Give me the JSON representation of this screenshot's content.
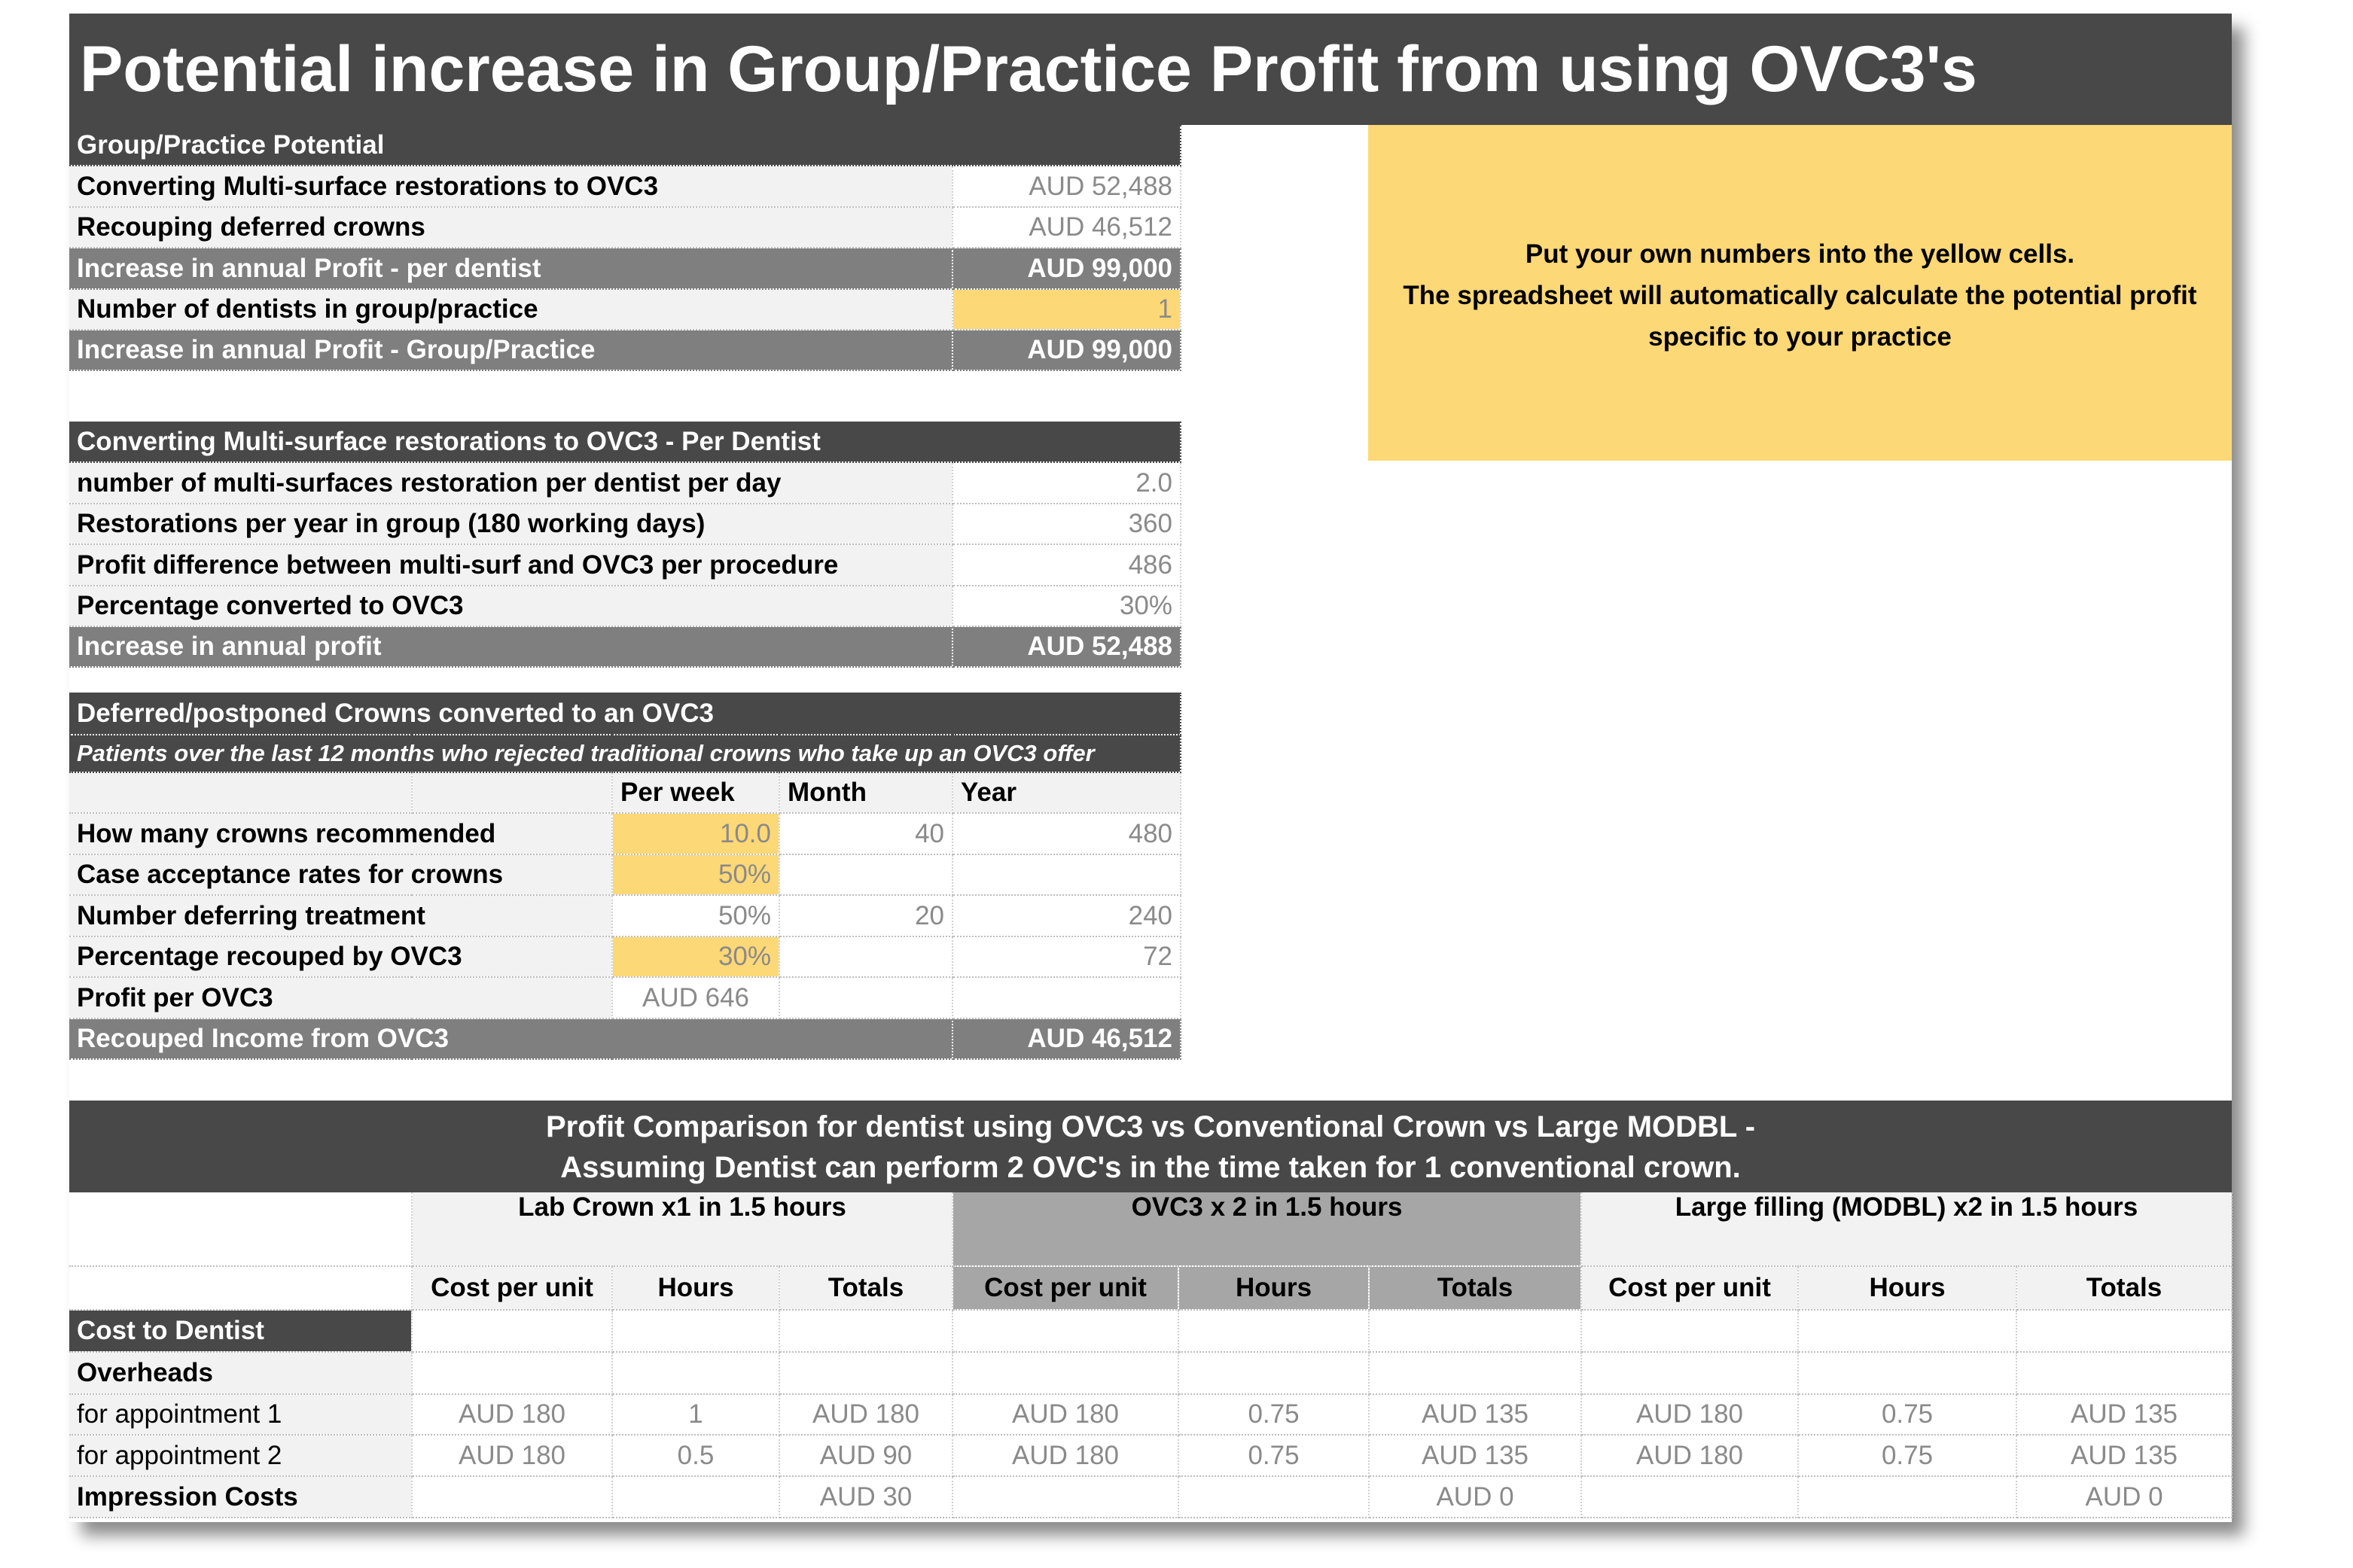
{
  "title": "Potential increase in Group/Practice Profit from using OVC3's",
  "note": {
    "line1": "Put your own numbers into the yellow cells.",
    "line2": "The spreadsheet will automatically calculate the potential profit",
    "line3": "specific to your practice"
  },
  "potential": {
    "header": "Group/Practice Potential",
    "rows": [
      {
        "label": "Converting Multi-surface restorations to OVC3",
        "value": "AUD 52,488"
      },
      {
        "label": "Recouping deferred crowns",
        "value": "AUD 46,512"
      }
    ],
    "per_dentist_label": "Increase in annual Profit - per dentist",
    "per_dentist_value": "AUD 99,000",
    "dentists_label": "Number of dentists in group/practice",
    "dentists_value": "1",
    "group_label": "Increase in annual Profit - Group/Practice",
    "group_value": "AUD 99,000"
  },
  "multisurface": {
    "header": "Converting Multi-surface restorations to OVC3 - Per Dentist",
    "rows": [
      {
        "label": "number of multi-surfaces restoration per dentist per day",
        "value": "2.0"
      },
      {
        "label": "Restorations per year in group (180 working days)",
        "value": "360"
      },
      {
        "label": "Profit difference between multi-surf and OVC3 per procedure",
        "value": "486"
      },
      {
        "label": "Percentage converted to OVC3",
        "value": "30%"
      }
    ],
    "total_label": "Increase in annual profit",
    "total_value": "AUD 52,488"
  },
  "deferred": {
    "header": "Deferred/postponed Crowns converted to an OVC3",
    "subheader": "Patients over the last 12 months who rejected traditional crowns who take up an OVC3 offer",
    "col_week": "Per week",
    "col_month": "Month",
    "col_year": "Year",
    "rows": [
      {
        "label": "How many crowns recommended",
        "week": "10.0",
        "month": "40",
        "year": "480"
      },
      {
        "label": "Case acceptance rates for crowns",
        "week": "50%",
        "month": "",
        "year": ""
      },
      {
        "label": "Number deferring treatment",
        "week": "50%",
        "month": "20",
        "year": "240"
      },
      {
        "label": "Percentage recouped by OVC3",
        "week": "30%",
        "month": "",
        "year": "72"
      },
      {
        "label": "Profit per OVC3",
        "week": "AUD 646",
        "month": "",
        "year": ""
      }
    ],
    "total_label": "Recouped Income from OVC3",
    "total_value": "AUD 46,512"
  },
  "comparison": {
    "title_line1": "Profit Comparison for dentist using OVC3 vs Conventional Crown vs Large MODBL -",
    "title_line2": "Assuming Dentist can perform 2 OVC's in the time taken for 1 conventional crown.",
    "groups": [
      "Lab Crown x1 in 1.5 hours",
      "OVC3 x 2 in 1.5 hours",
      "Large filling (MODBL) x2 in 1.5 hours"
    ],
    "col_cost": "Cost per unit",
    "col_hours": "Hours",
    "col_totals": "Totals",
    "cost_to_dentist": "Cost to Dentist",
    "overheads": "Overheads",
    "rows": [
      {
        "label": "for appointment 1",
        "cells": [
          "AUD 180",
          "1",
          "AUD 180",
          "AUD 180",
          "0.75",
          "AUD 135",
          "AUD 180",
          "0.75",
          "AUD 135"
        ]
      },
      {
        "label": "for appointment 2",
        "cells": [
          "AUD 180",
          "0.5",
          "AUD 90",
          "AUD 180",
          "0.75",
          "AUD 135",
          "AUD 180",
          "0.75",
          "AUD 135"
        ]
      },
      {
        "label": "Impression Costs",
        "cells": [
          "",
          "",
          "AUD 30",
          "",
          "",
          "AUD 0",
          "",
          "",
          "AUD 0"
        ]
      }
    ]
  }
}
